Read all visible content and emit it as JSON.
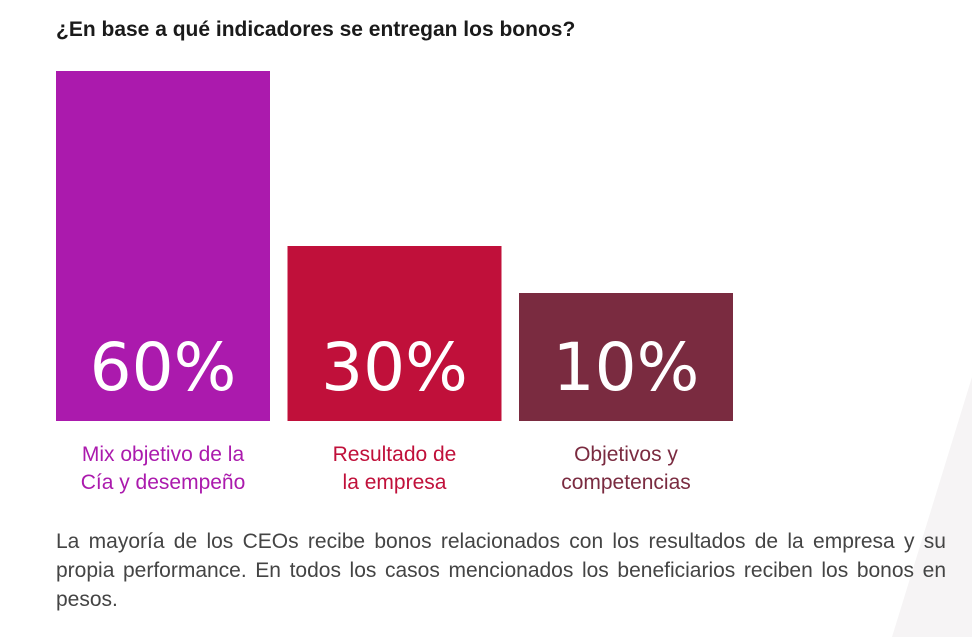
{
  "chart_data": {
    "type": "bar",
    "title": "¿En base a qué indicadores se entregan los bonos?",
    "categories": [
      [
        "Mix objetivo de la",
        "Cía y desempeño"
      ],
      [
        "Resultado de",
        "la empresa"
      ],
      [
        "Objetivos y",
        "competencias"
      ]
    ],
    "values": [
      60,
      30,
      10
    ],
    "data_labels": [
      "60%",
      "30%",
      "10%"
    ],
    "colors": [
      "#ab1aad",
      "#c0103a",
      "#7a2b40"
    ],
    "xlabel": "",
    "ylabel": "",
    "grid": false
  },
  "description": "La mayoría de los CEOs recibe bonos relacionados con los resultados de la em­presa y su propia performance. En todos los casos mencionados los beneficiarios reciben los bonos en pesos."
}
